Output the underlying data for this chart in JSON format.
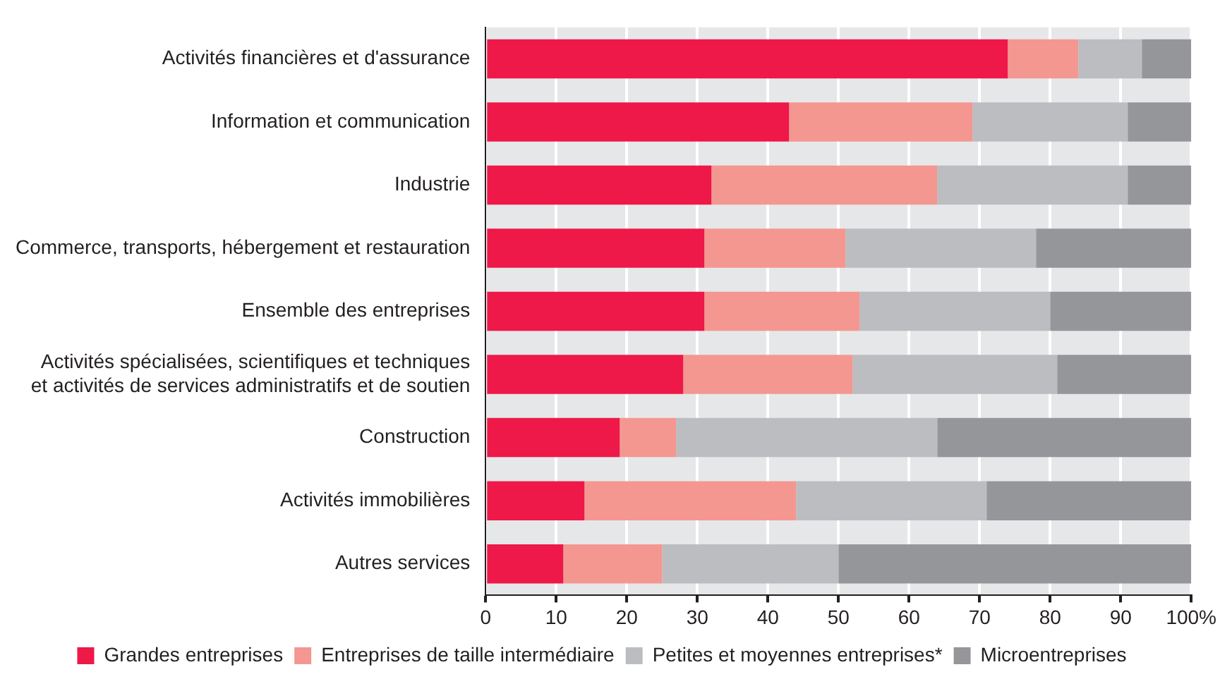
{
  "chart_data": {
    "type": "bar",
    "orientation": "horizontal",
    "stacked": true,
    "categories": [
      "Activités financières et d'assurance",
      "Information et communication",
      "Industrie",
      "Commerce, transports, hébergement et restauration",
      "Ensemble des entreprises",
      "Activités spécialisées, scientifiques et techniques et activités de services administratifs et de soutien",
      "Construction",
      "Activités immobilières",
      "Autres services"
    ],
    "series": [
      {
        "name": "Grandes entreprises",
        "color": "#ee1849",
        "values": [
          74,
          43,
          32,
          31,
          31,
          28,
          19,
          14,
          11
        ]
      },
      {
        "name": "Entreprises de taille intermédiaire",
        "color": "#f49791",
        "values": [
          10,
          26,
          32,
          20,
          22,
          24,
          8,
          30,
          14
        ]
      },
      {
        "name": "Petites et moyennes entreprises*",
        "color": "#bcbdc0",
        "values": [
          9,
          22,
          27,
          27,
          27,
          29,
          37,
          27,
          25
        ]
      },
      {
        "name": "Microentreprises",
        "color": "#959699",
        "values": [
          7,
          9,
          9,
          22,
          20,
          19,
          36,
          29,
          50
        ]
      }
    ],
    "xlim": [
      0,
      100
    ],
    "xticks": [
      0,
      10,
      20,
      30,
      40,
      50,
      60,
      70,
      80,
      90,
      {
        "value": 100,
        "label": "100%"
      }
    ],
    "grid": "x",
    "legend": "bottom"
  }
}
